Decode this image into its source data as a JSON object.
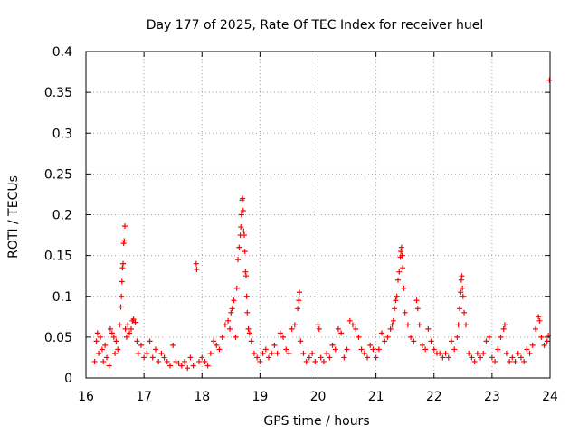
{
  "chart_data": {
    "type": "scatter",
    "title": "Day 177 of 2025, Rate Of TEC Index for receiver huel",
    "xlabel": "GPS time / hours",
    "ylabel": "ROTI / TECUs",
    "xlim": [
      16,
      24
    ],
    "ylim": [
      0,
      0.4
    ],
    "x_ticks": [
      16,
      17,
      18,
      19,
      20,
      21,
      22,
      23,
      24
    ],
    "x_tick_labels": [
      "16",
      "17",
      "18",
      "19",
      "20",
      "21",
      "22",
      "23",
      "24"
    ],
    "y_ticks": [
      0,
      0.05,
      0.1,
      0.15,
      0.2,
      0.25,
      0.3,
      0.35,
      0.4
    ],
    "y_tick_labels": [
      "0",
      "0.05",
      "0.1",
      "0.15",
      "0.2",
      "0.25",
      "0.3",
      "0.35",
      "0.4"
    ],
    "grid": true,
    "marker": "+",
    "series": [
      {
        "name": "ROTI",
        "color": "#ff0000",
        "points": [
          [
            16.15,
            0.02
          ],
          [
            16.18,
            0.045
          ],
          [
            16.2,
            0.055
          ],
          [
            16.22,
            0.03
          ],
          [
            16.25,
            0.05
          ],
          [
            16.28,
            0.035
          ],
          [
            16.3,
            0.02
          ],
          [
            16.33,
            0.04
          ],
          [
            16.36,
            0.025
          ],
          [
            16.4,
            0.015
          ],
          [
            16.42,
            0.06
          ],
          [
            16.45,
            0.055
          ],
          [
            16.48,
            0.05
          ],
          [
            16.5,
            0.03
          ],
          [
            16.52,
            0.045
          ],
          [
            16.55,
            0.035
          ],
          [
            16.58,
            0.065
          ],
          [
            16.6,
            0.087
          ],
          [
            16.61,
            0.1
          ],
          [
            16.62,
            0.118
          ],
          [
            16.63,
            0.135
          ],
          [
            16.64,
            0.14
          ],
          [
            16.65,
            0.165
          ],
          [
            16.66,
            0.168
          ],
          [
            16.67,
            0.186
          ],
          [
            16.68,
            0.06
          ],
          [
            16.7,
            0.05
          ],
          [
            16.72,
            0.065
          ],
          [
            16.75,
            0.055
          ],
          [
            16.78,
            0.06
          ],
          [
            16.8,
            0.07
          ],
          [
            16.82,
            0.072
          ],
          [
            16.85,
            0.068
          ],
          [
            16.88,
            0.045
          ],
          [
            16.9,
            0.03
          ],
          [
            16.95,
            0.04
          ],
          [
            17.0,
            0.025
          ],
          [
            17.05,
            0.03
          ],
          [
            17.1,
            0.045
          ],
          [
            17.15,
            0.025
          ],
          [
            17.2,
            0.035
          ],
          [
            17.25,
            0.02
          ],
          [
            17.3,
            0.03
          ],
          [
            17.35,
            0.025
          ],
          [
            17.4,
            0.02
          ],
          [
            17.45,
            0.015
          ],
          [
            17.5,
            0.04
          ],
          [
            17.55,
            0.02
          ],
          [
            17.6,
            0.018
          ],
          [
            17.65,
            0.015
          ],
          [
            17.7,
            0.02
          ],
          [
            17.75,
            0.012
          ],
          [
            17.8,
            0.025
          ],
          [
            17.85,
            0.015
          ],
          [
            17.9,
            0.14
          ],
          [
            17.91,
            0.133
          ],
          [
            17.95,
            0.02
          ],
          [
            18.0,
            0.025
          ],
          [
            18.05,
            0.02
          ],
          [
            18.1,
            0.015
          ],
          [
            18.15,
            0.03
          ],
          [
            18.2,
            0.045
          ],
          [
            18.25,
            0.04
          ],
          [
            18.3,
            0.035
          ],
          [
            18.35,
            0.05
          ],
          [
            18.4,
            0.065
          ],
          [
            18.45,
            0.07
          ],
          [
            18.48,
            0.06
          ],
          [
            18.5,
            0.08
          ],
          [
            18.52,
            0.085
          ],
          [
            18.55,
            0.095
          ],
          [
            18.58,
            0.05
          ],
          [
            18.6,
            0.11
          ],
          [
            18.62,
            0.145
          ],
          [
            18.64,
            0.16
          ],
          [
            18.66,
            0.175
          ],
          [
            18.67,
            0.185
          ],
          [
            18.68,
            0.2
          ],
          [
            18.69,
            0.218
          ],
          [
            18.7,
            0.22
          ],
          [
            18.71,
            0.205
          ],
          [
            18.72,
            0.18
          ],
          [
            18.73,
            0.175
          ],
          [
            18.74,
            0.155
          ],
          [
            18.75,
            0.13
          ],
          [
            18.76,
            0.125
          ],
          [
            18.77,
            0.1
          ],
          [
            18.78,
            0.08
          ],
          [
            18.8,
            0.06
          ],
          [
            18.82,
            0.055
          ],
          [
            18.85,
            0.045
          ],
          [
            18.9,
            0.03
          ],
          [
            18.95,
            0.025
          ],
          [
            19.0,
            0.02
          ],
          [
            19.05,
            0.03
          ],
          [
            19.1,
            0.035
          ],
          [
            19.15,
            0.025
          ],
          [
            19.2,
            0.03
          ],
          [
            19.25,
            0.04
          ],
          [
            19.3,
            0.03
          ],
          [
            19.35,
            0.055
          ],
          [
            19.4,
            0.05
          ],
          [
            19.45,
            0.035
          ],
          [
            19.5,
            0.03
          ],
          [
            19.55,
            0.06
          ],
          [
            19.6,
            0.065
          ],
          [
            19.65,
            0.085
          ],
          [
            19.67,
            0.095
          ],
          [
            19.68,
            0.105
          ],
          [
            19.7,
            0.045
          ],
          [
            19.75,
            0.03
          ],
          [
            19.8,
            0.02
          ],
          [
            19.85,
            0.025
          ],
          [
            19.9,
            0.03
          ],
          [
            19.95,
            0.02
          ],
          [
            20.0,
            0.065
          ],
          [
            20.02,
            0.06
          ],
          [
            20.05,
            0.025
          ],
          [
            20.1,
            0.02
          ],
          [
            20.15,
            0.03
          ],
          [
            20.2,
            0.025
          ],
          [
            20.25,
            0.04
          ],
          [
            20.3,
            0.035
          ],
          [
            20.35,
            0.06
          ],
          [
            20.4,
            0.055
          ],
          [
            20.45,
            0.025
          ],
          [
            20.5,
            0.035
          ],
          [
            20.55,
            0.07
          ],
          [
            20.6,
            0.065
          ],
          [
            20.65,
            0.06
          ],
          [
            20.7,
            0.05
          ],
          [
            20.75,
            0.035
          ],
          [
            20.8,
            0.03
          ],
          [
            20.85,
            0.025
          ],
          [
            20.9,
            0.04
          ],
          [
            20.95,
            0.035
          ],
          [
            21.0,
            0.025
          ],
          [
            21.05,
            0.035
          ],
          [
            21.1,
            0.055
          ],
          [
            21.15,
            0.045
          ],
          [
            21.2,
            0.05
          ],
          [
            21.25,
            0.06
          ],
          [
            21.28,
            0.065
          ],
          [
            21.3,
            0.07
          ],
          [
            21.32,
            0.085
          ],
          [
            21.34,
            0.095
          ],
          [
            21.36,
            0.1
          ],
          [
            21.38,
            0.12
          ],
          [
            21.4,
            0.13
          ],
          [
            21.42,
            0.148
          ],
          [
            21.43,
            0.155
          ],
          [
            21.44,
            0.16
          ],
          [
            21.45,
            0.15
          ],
          [
            21.46,
            0.135
          ],
          [
            21.48,
            0.11
          ],
          [
            21.5,
            0.08
          ],
          [
            21.55,
            0.065
          ],
          [
            21.6,
            0.05
          ],
          [
            21.65,
            0.045
          ],
          [
            21.7,
            0.095
          ],
          [
            21.72,
            0.085
          ],
          [
            21.75,
            0.065
          ],
          [
            21.8,
            0.04
          ],
          [
            21.85,
            0.035
          ],
          [
            21.9,
            0.06
          ],
          [
            21.95,
            0.045
          ],
          [
            22.0,
            0.035
          ],
          [
            22.05,
            0.03
          ],
          [
            22.1,
            0.03
          ],
          [
            22.15,
            0.025
          ],
          [
            22.2,
            0.03
          ],
          [
            22.25,
            0.025
          ],
          [
            22.3,
            0.045
          ],
          [
            22.35,
            0.035
          ],
          [
            22.4,
            0.05
          ],
          [
            22.42,
            0.065
          ],
          [
            22.44,
            0.085
          ],
          [
            22.46,
            0.105
          ],
          [
            22.47,
            0.12
          ],
          [
            22.48,
            0.125
          ],
          [
            22.49,
            0.11
          ],
          [
            22.5,
            0.1
          ],
          [
            22.52,
            0.08
          ],
          [
            22.55,
            0.065
          ],
          [
            22.6,
            0.03
          ],
          [
            22.65,
            0.025
          ],
          [
            22.7,
            0.02
          ],
          [
            22.75,
            0.03
          ],
          [
            22.8,
            0.025
          ],
          [
            22.85,
            0.03
          ],
          [
            22.9,
            0.045
          ],
          [
            22.95,
            0.05
          ],
          [
            23.0,
            0.025
          ],
          [
            23.05,
            0.02
          ],
          [
            23.1,
            0.035
          ],
          [
            23.15,
            0.05
          ],
          [
            23.2,
            0.06
          ],
          [
            23.22,
            0.065
          ],
          [
            23.25,
            0.03
          ],
          [
            23.3,
            0.02
          ],
          [
            23.35,
            0.025
          ],
          [
            23.4,
            0.02
          ],
          [
            23.45,
            0.03
          ],
          [
            23.5,
            0.025
          ],
          [
            23.55,
            0.02
          ],
          [
            23.6,
            0.035
          ],
          [
            23.65,
            0.03
          ],
          [
            23.7,
            0.04
          ],
          [
            23.75,
            0.06
          ],
          [
            23.8,
            0.075
          ],
          [
            23.82,
            0.07
          ],
          [
            23.85,
            0.05
          ],
          [
            23.9,
            0.04
          ],
          [
            23.95,
            0.045
          ],
          [
            23.97,
            0.052
          ],
          [
            23.99,
            0.365
          ]
        ]
      }
    ]
  }
}
